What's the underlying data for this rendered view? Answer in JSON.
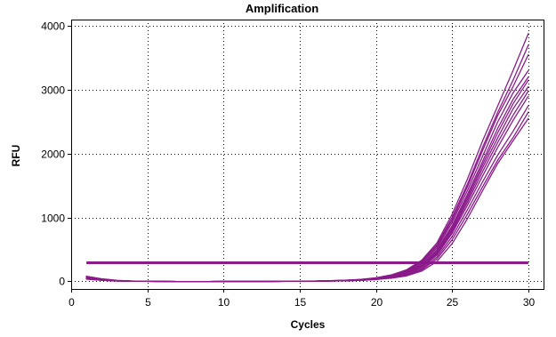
{
  "chart_data": {
    "type": "line",
    "title": "Amplification",
    "xlabel": "Cycles",
    "ylabel": "RFU",
    "xlim": [
      0,
      31
    ],
    "ylim": [
      -120,
      4100
    ],
    "xticks": [
      0,
      5,
      10,
      15,
      20,
      25,
      30
    ],
    "yticks": [
      0,
      1000,
      2000,
      3000,
      4000
    ],
    "grid": true,
    "legend": "none",
    "series_color": "#8b1a8b",
    "threshold_color": "#8b1a8b",
    "threshold": 290,
    "threshold_x": [
      1,
      30
    ],
    "x": [
      1,
      2,
      3,
      4,
      5,
      6,
      7,
      8,
      9,
      10,
      11,
      12,
      13,
      14,
      15,
      16,
      17,
      18,
      19,
      20,
      21,
      22,
      23,
      24,
      25,
      26,
      27,
      28,
      29,
      30
    ],
    "series": [
      {
        "values": [
          80,
          40,
          15,
          5,
          0,
          -2,
          -3,
          -3,
          -3,
          -2,
          -2,
          -2,
          -1,
          0,
          2,
          5,
          10,
          18,
          30,
          55,
          100,
          180,
          330,
          600,
          1050,
          1600,
          2200,
          2750,
          3300,
          3880
        ]
      },
      {
        "values": [
          70,
          35,
          12,
          4,
          0,
          -2,
          -3,
          -3,
          -3,
          -2,
          -2,
          -2,
          -1,
          0,
          2,
          4,
          9,
          16,
          28,
          50,
          95,
          170,
          310,
          570,
          1000,
          1520,
          2100,
          2650,
          3150,
          3700
        ]
      },
      {
        "values": [
          60,
          30,
          10,
          3,
          0,
          -2,
          -3,
          -3,
          -3,
          -2,
          -2,
          -2,
          -1,
          0,
          2,
          4,
          8,
          15,
          26,
          48,
          90,
          160,
          300,
          550,
          960,
          1480,
          2050,
          2600,
          3050,
          3550
        ]
      },
      {
        "values": [
          55,
          28,
          10,
          3,
          0,
          -2,
          -3,
          -3,
          -3,
          -2,
          -2,
          -2,
          -1,
          0,
          2,
          4,
          8,
          14,
          24,
          45,
          85,
          150,
          280,
          520,
          920,
          1420,
          1960,
          2500,
          2950,
          3300
        ]
      },
      {
        "values": [
          50,
          25,
          9,
          3,
          0,
          -2,
          -3,
          -3,
          -3,
          -2,
          -2,
          -2,
          -1,
          0,
          2,
          4,
          7,
          13,
          22,
          42,
          80,
          140,
          260,
          490,
          870,
          1360,
          1880,
          2400,
          2850,
          3200
        ]
      },
      {
        "values": [
          48,
          24,
          8,
          2,
          0,
          -2,
          -3,
          -3,
          -3,
          -2,
          -2,
          -2,
          -1,
          0,
          2,
          3,
          7,
          12,
          21,
          40,
          75,
          135,
          250,
          470,
          840,
          1320,
          1830,
          2330,
          2780,
          3150
        ]
      },
      {
        "values": [
          45,
          22,
          8,
          2,
          0,
          -2,
          -3,
          -3,
          -3,
          -2,
          -2,
          -2,
          -1,
          0,
          2,
          3,
          6,
          12,
          20,
          38,
          72,
          130,
          240,
          450,
          810,
          1280,
          1780,
          2250,
          2700,
          3050
        ]
      },
      {
        "values": [
          42,
          20,
          7,
          2,
          0,
          -2,
          -3,
          -3,
          -3,
          -2,
          -2,
          -2,
          -1,
          0,
          1,
          3,
          6,
          11,
          19,
          36,
          68,
          120,
          225,
          430,
          780,
          1240,
          1720,
          2180,
          2600,
          2980
        ]
      },
      {
        "values": [
          40,
          19,
          7,
          2,
          0,
          -2,
          -3,
          -3,
          -3,
          -2,
          -2,
          -2,
          -1,
          0,
          1,
          3,
          6,
          10,
          18,
          34,
          64,
          115,
          215,
          410,
          750,
          1190,
          1650,
          2100,
          2520,
          2900
        ]
      },
      {
        "values": [
          38,
          18,
          6,
          2,
          0,
          -2,
          -3,
          -3,
          -3,
          -2,
          -2,
          -2,
          -1,
          0,
          1,
          3,
          5,
          10,
          17,
          32,
          60,
          105,
          195,
          380,
          700,
          1120,
          1560,
          1980,
          2350,
          2750
        ]
      },
      {
        "values": [
          36,
          17,
          6,
          2,
          0,
          -2,
          -3,
          -3,
          -3,
          -2,
          -2,
          -2,
          -1,
          0,
          1,
          3,
          5,
          9,
          16,
          30,
          55,
          95,
          180,
          350,
          650,
          1050,
          1480,
          1900,
          2250,
          2650
        ]
      },
      {
        "values": [
          34,
          16,
          5,
          1,
          0,
          -2,
          -3,
          -3,
          -3,
          -2,
          -2,
          -2,
          -1,
          0,
          1,
          2,
          5,
          9,
          15,
          28,
          50,
          85,
          160,
          310,
          590,
          980,
          1420,
          1850,
          2200,
          2550
        ]
      }
    ]
  }
}
